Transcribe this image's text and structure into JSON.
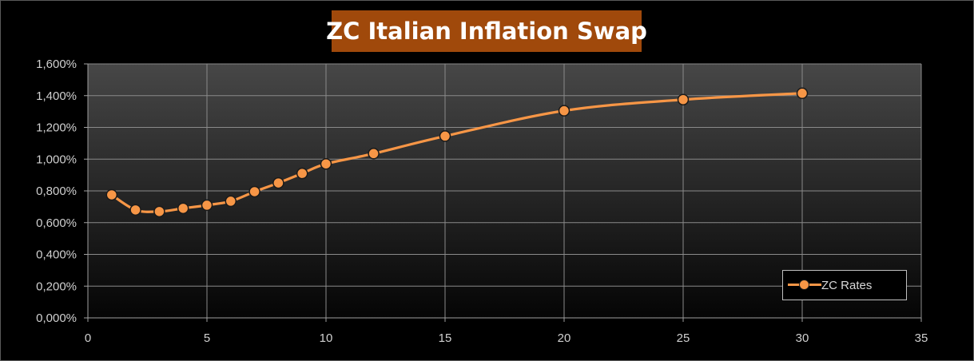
{
  "title": "ZC Italian Inflation Swap",
  "colors": {
    "series": "#f79646",
    "title_bg": "#a0490b",
    "grid": "#8a8a8a",
    "text": "#d0d0d0"
  },
  "legend": {
    "label": "ZC Rates",
    "position": "bottom-right"
  },
  "chart_data": {
    "type": "line",
    "title": "ZC Italian Inflation Swap",
    "xlabel": "",
    "ylabel": "",
    "xlim": [
      0,
      35
    ],
    "ylim": [
      0,
      1.6
    ],
    "x_ticks": [
      "0",
      "5",
      "10",
      "15",
      "20",
      "25",
      "30",
      "35"
    ],
    "y_ticks": [
      "0,000%",
      "0,200%",
      "0,400%",
      "0,600%",
      "0,800%",
      "1,000%",
      "1,200%",
      "1,400%",
      "1,600%"
    ],
    "grid": true,
    "smooth": true,
    "series": [
      {
        "name": "ZC Rates",
        "x": [
          1,
          2,
          3,
          4,
          5,
          6,
          7,
          8,
          9,
          10,
          12,
          15,
          20,
          25,
          30
        ],
        "y": [
          0.775,
          0.68,
          0.67,
          0.69,
          0.71,
          0.735,
          0.795,
          0.85,
          0.91,
          0.97,
          1.035,
          1.145,
          1.305,
          1.375,
          1.415
        ]
      }
    ]
  }
}
